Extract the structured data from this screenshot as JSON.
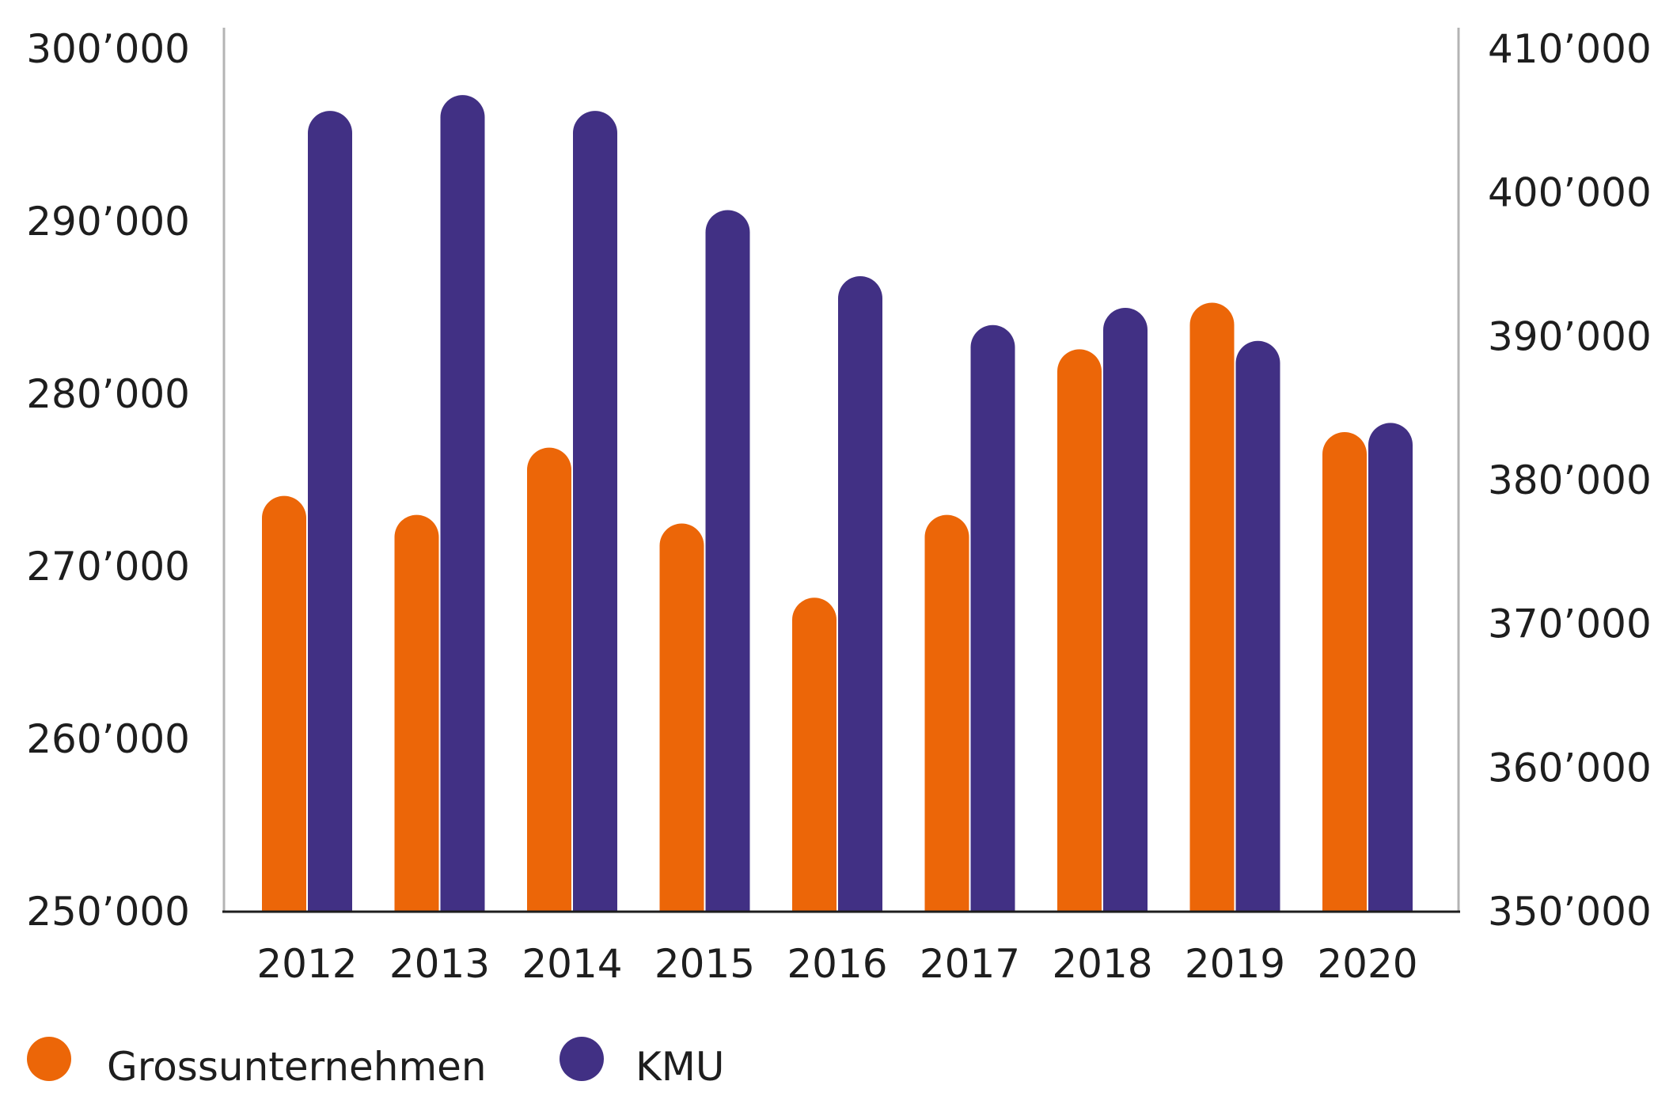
{
  "chart_data": {
    "type": "bar",
    "categories": [
      "2012",
      "2013",
      "2014",
      "2015",
      "2016",
      "2017",
      "2018",
      "2019",
      "2020"
    ],
    "series": [
      {
        "name": "Grossunternehmen",
        "axis": "left",
        "color": "#ec6608",
        "values": [
          274100,
          273000,
          276900,
          272500,
          268200,
          273000,
          282600,
          285300,
          277800
        ]
      },
      {
        "name": "KMU",
        "axis": "right",
        "color": "#413084",
        "values": [
          405700,
          406800,
          405700,
          398800,
          394200,
          390800,
          392000,
          389700,
          384000
        ]
      }
    ],
    "y_left": {
      "lim": [
        250000,
        300000
      ],
      "ticks": [
        250000,
        260000,
        270000,
        280000,
        290000,
        300000
      ],
      "tick_labels": [
        "250’000",
        "260’000",
        "270’000",
        "280’000",
        "290’000",
        "300’000"
      ]
    },
    "y_right": {
      "lim": [
        350000,
        410000
      ],
      "ticks": [
        350000,
        360000,
        370000,
        380000,
        390000,
        400000,
        410000
      ],
      "tick_labels": [
        "350’000",
        "360’000",
        "370’000",
        "380’000",
        "390’000",
        "400’000",
        "410’000"
      ]
    },
    "grid": false,
    "legend": {
      "placement": "bottom-left",
      "entries": [
        "Grossunternehmen",
        "KMU"
      ]
    },
    "axis_color": "#b4b4b4",
    "baseline_color": "#1e1e1e"
  }
}
